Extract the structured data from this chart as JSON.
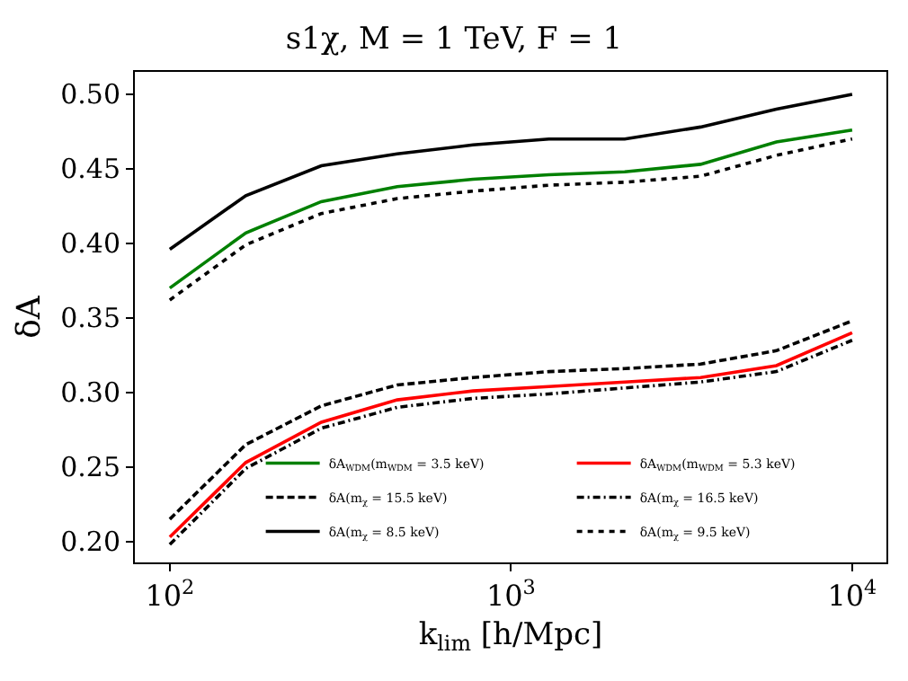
{
  "chart_data": {
    "type": "line",
    "title": "s1χ, M = 1 TeV, F = 1",
    "xlabel": "k$_{lim}$ [h/Mpc]",
    "ylabel": "δA",
    "log": "x",
    "x": [
      100,
      167,
      278,
      464,
      774,
      1292,
      2154,
      3594,
      5995,
      10000
    ],
    "xlim": [
      79,
      12600
    ],
    "xticks": [
      {
        "value": 100,
        "label": "10$^{2}$"
      },
      {
        "value": 1000,
        "label": "10$^{3}$"
      },
      {
        "value": 10000,
        "label": "10$^{4}$"
      }
    ],
    "ylim": [
      0.186,
      0.515
    ],
    "yticks": [
      {
        "value": 0.2,
        "label": "0.20"
      },
      0.25,
      {
        "value": 0.3,
        "label": "0.30"
      },
      0.35,
      {
        "value": 0.4,
        "label": "0.40"
      },
      0.45,
      {
        "value": 0.5,
        "label": "0.50"
      }
    ],
    "grid": false,
    "legend": "bottom right",
    "marker": "none",
    "series": [
      {
        "name": "δA$_{WDM}$(m$_{WDM}$ = 3.5 keV)",
        "color": "#008000",
        "line_style": "solid",
        "values": [
          0.37,
          0.407,
          0.428,
          0.438,
          0.443,
          0.446,
          0.448,
          0.453,
          0.468,
          0.476
        ]
      },
      {
        "name": "δA$_{WDM}$(m$_{WDM}$ = 5.3 keV)",
        "color": "#ff0000",
        "line_style": "solid",
        "values": [
          0.203,
          0.253,
          0.28,
          0.295,
          0.301,
          0.304,
          0.307,
          0.31,
          0.318,
          0.34
        ]
      },
      {
        "name": "δA(m$_{χ}$ = 15.5 keV)",
        "color": "#000000",
        "line_style": "dashed",
        "values": [
          0.215,
          0.265,
          0.291,
          0.305,
          0.31,
          0.314,
          0.316,
          0.319,
          0.328,
          0.348
        ]
      },
      {
        "name": "δA(m$_{χ}$ = 16.5 keV)",
        "color": "#000000",
        "line_style": "dashdot",
        "values": [
          0.198,
          0.249,
          0.276,
          0.29,
          0.296,
          0.299,
          0.303,
          0.307,
          0.314,
          0.335
        ]
      },
      {
        "name": "δA(m$_{χ}$ = 8.5 keV)",
        "color": "#000000",
        "line_style": "solid",
        "values": [
          0.396,
          0.432,
          0.452,
          0.46,
          0.466,
          0.47,
          0.47,
          0.478,
          0.49,
          0.5
        ]
      },
      {
        "name": "δA(m$_{χ}$ = 9.5 keV)",
        "color": "#000000",
        "line_style": "dotted",
        "values": [
          0.362,
          0.399,
          0.42,
          0.43,
          0.435,
          0.439,
          0.441,
          0.445,
          0.459,
          0.47
        ]
      }
    ]
  }
}
